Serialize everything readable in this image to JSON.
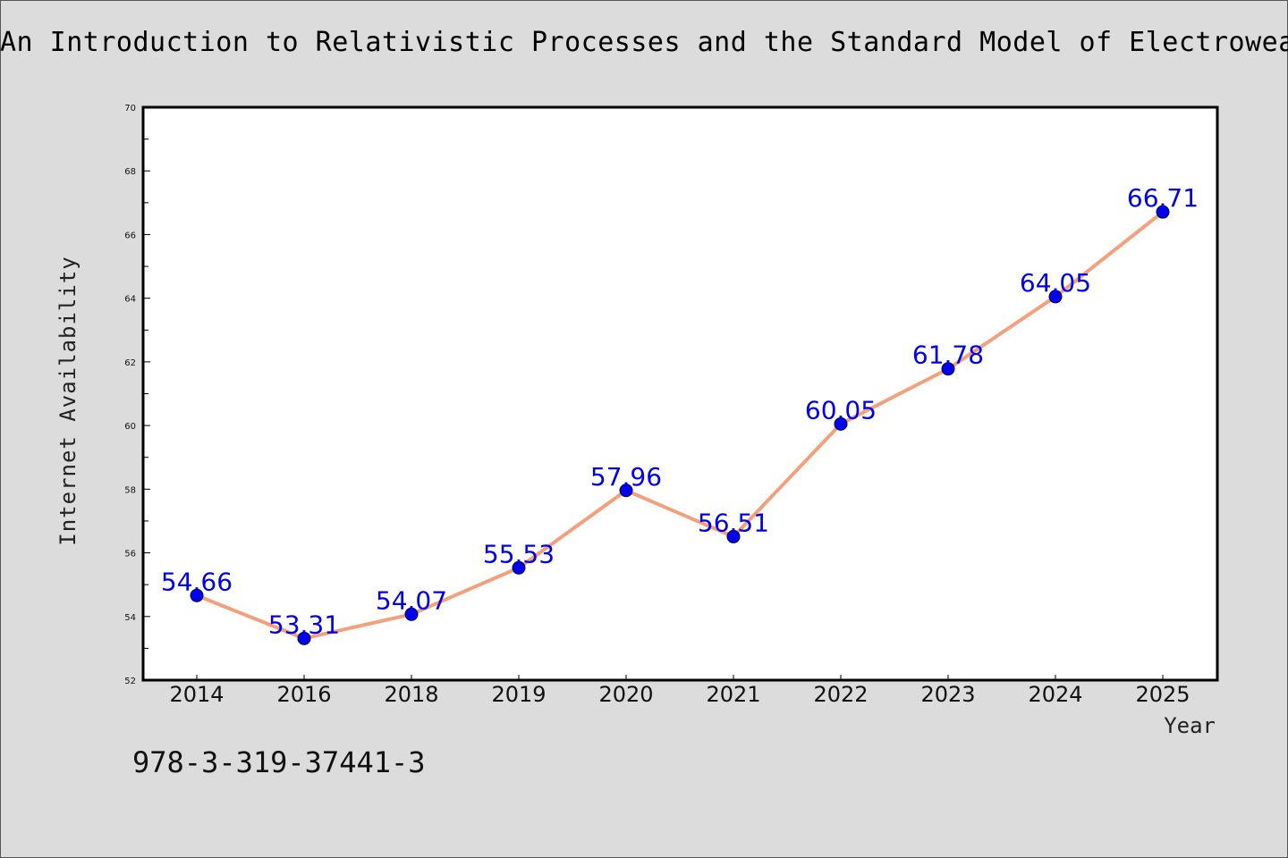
{
  "chart_data": {
    "type": "line",
    "title": "An Introduction to Relativistic Processes and the Standard Model of Electroweak",
    "xlabel": "Year",
    "ylabel": "Internet Availability",
    "categories": [
      "2014",
      "2016",
      "2018",
      "2019",
      "2020",
      "2021",
      "2022",
      "2023",
      "2024",
      "2025"
    ],
    "series": [
      {
        "values": [
          54.66,
          53.31,
          54.07,
          55.53,
          57.96,
          56.51,
          60.05,
          61.78,
          64.05,
          66.71
        ],
        "data_labels": [
          "54.66",
          "53.31",
          "54.07",
          "55.53",
          "57.96",
          "56.51",
          "60.05",
          "61.78",
          "64.05",
          "66.71"
        ]
      }
    ],
    "ylim": [
      52,
      70
    ],
    "y_ticks": [
      "52",
      "54",
      "56",
      "58",
      "60",
      "62",
      "64",
      "66",
      "68",
      "70"
    ],
    "grid": false,
    "legend": "none",
    "colors": {
      "line": "#f4a07c",
      "marker": "#0000ee",
      "data_label": "#0000ee",
      "background": "#dcdcdc",
      "plot_area": "#ffffff"
    }
  },
  "footer": {
    "isbn": "978-3-319-37441-3"
  }
}
